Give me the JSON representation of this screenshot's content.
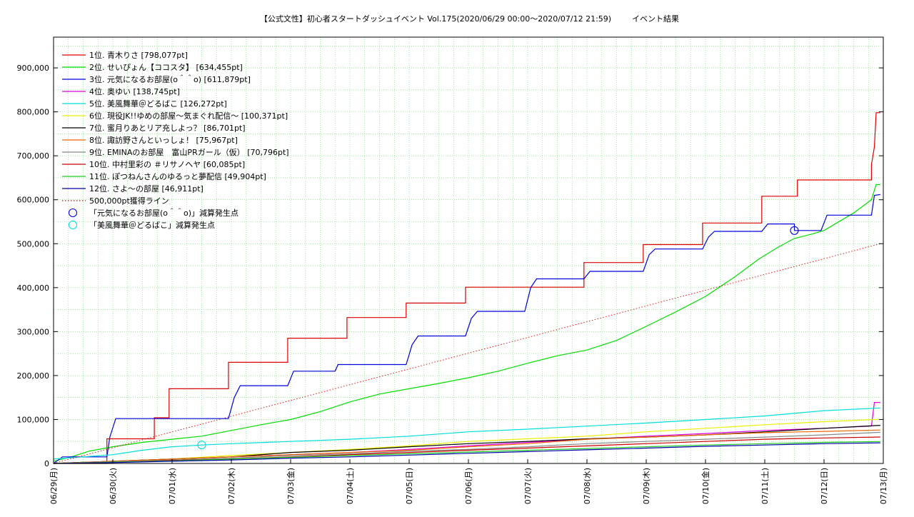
{
  "chart_data": {
    "type": "line",
    "title": "【公式文性】初心者スタートダッシュイベント Vol.175(2020/06/29 00:00〜2020/07/12 21:59)",
    "subtitle": "イベント結果",
    "xlabel": "",
    "ylabel": "",
    "x_ticks": [
      "06/29(月)",
      "06/30(火)",
      "07/01(水)",
      "07/02(木)",
      "07/03(金)",
      "07/04(土)",
      "07/05(日)",
      "07/06(月)",
      "07/07(火)",
      "07/08(水)",
      "07/09(木)",
      "07/10(金)",
      "07/11(土)",
      "07/12(日)",
      "07/13(月)"
    ],
    "y_ticks": [
      "0",
      "100,000",
      "200,000",
      "300,000",
      "400,000",
      "500,000",
      "600,000",
      "700,000",
      "800,000",
      "900,000"
    ],
    "ylim": [
      0,
      970000
    ],
    "xlim": [
      0,
      14
    ],
    "grid": true,
    "legend_position": "top-left",
    "series": [
      {
        "name": "1位. 青木りさ [798,077pt]",
        "color": "#e00000",
        "style": "solid",
        "points": [
          [
            0,
            0
          ],
          [
            0.9,
            0
          ],
          [
            0.9,
            56000
          ],
          [
            1.7,
            56000
          ],
          [
            1.7,
            104000
          ],
          [
            1.95,
            104000
          ],
          [
            1.95,
            170000
          ],
          [
            2.95,
            170000
          ],
          [
            2.95,
            230000
          ],
          [
            3.95,
            230000
          ],
          [
            3.95,
            285000
          ],
          [
            4.95,
            285000
          ],
          [
            4.95,
            332000
          ],
          [
            5.95,
            332000
          ],
          [
            5.95,
            365000
          ],
          [
            6.95,
            365000
          ],
          [
            6.95,
            401000
          ],
          [
            8.95,
            401000
          ],
          [
            8.95,
            457000
          ],
          [
            9.95,
            457000
          ],
          [
            9.95,
            498000
          ],
          [
            10.95,
            498000
          ],
          [
            10.95,
            547000
          ],
          [
            11.95,
            547000
          ],
          [
            11.95,
            608000
          ],
          [
            12.55,
            608000
          ],
          [
            12.55,
            645000
          ],
          [
            13.8,
            645000
          ],
          [
            13.8,
            680000
          ],
          [
            13.85,
            720000
          ],
          [
            13.88,
            798077
          ],
          [
            13.95,
            798077
          ]
        ]
      },
      {
        "name": "2位. せいぴょん【ココスタ】 [634,455pt]",
        "color": "#00dd00",
        "style": "solid",
        "points": [
          [
            0,
            5000
          ],
          [
            0.3,
            15000
          ],
          [
            0.6,
            28000
          ],
          [
            1,
            38000
          ],
          [
            1.5,
            48000
          ],
          [
            2,
            55000
          ],
          [
            2.5,
            62000
          ],
          [
            3,
            75000
          ],
          [
            3.5,
            88000
          ],
          [
            4,
            100000
          ],
          [
            4.5,
            118000
          ],
          [
            5,
            140000
          ],
          [
            5.5,
            158000
          ],
          [
            6,
            170000
          ],
          [
            6.5,
            182000
          ],
          [
            7,
            195000
          ],
          [
            7.5,
            210000
          ],
          [
            8,
            228000
          ],
          [
            8.5,
            245000
          ],
          [
            9,
            258000
          ],
          [
            9.5,
            280000
          ],
          [
            10,
            312000
          ],
          [
            10.5,
            345000
          ],
          [
            11,
            380000
          ],
          [
            11.5,
            425000
          ],
          [
            11.9,
            465000
          ],
          [
            12.2,
            490000
          ],
          [
            12.5,
            512000
          ],
          [
            12.8,
            522000
          ],
          [
            13,
            530000
          ],
          [
            13.5,
            570000
          ],
          [
            13.8,
            600000
          ],
          [
            13.88,
            634455
          ],
          [
            13.95,
            634455
          ]
        ]
      },
      {
        "name": "3位. 元気になるお部屋(o＾＾o) [611,879pt]",
        "color": "#0000dd",
        "style": "solid",
        "points": [
          [
            0,
            0
          ],
          [
            0.15,
            15000
          ],
          [
            0.9,
            15000
          ],
          [
            0.95,
            60000
          ],
          [
            1.05,
            102000
          ],
          [
            2.95,
            102000
          ],
          [
            3.05,
            150000
          ],
          [
            3.15,
            177000
          ],
          [
            3.95,
            177000
          ],
          [
            4.05,
            210000
          ],
          [
            4.75,
            210000
          ],
          [
            4.8,
            225000
          ],
          [
            5.95,
            225000
          ],
          [
            6.05,
            270000
          ],
          [
            6.15,
            290000
          ],
          [
            6.95,
            290000
          ],
          [
            7.05,
            330000
          ],
          [
            7.15,
            346000
          ],
          [
            7.95,
            346000
          ],
          [
            8.05,
            400000
          ],
          [
            8.15,
            420000
          ],
          [
            8.95,
            420000
          ],
          [
            9.05,
            437000
          ],
          [
            9.95,
            437000
          ],
          [
            10.05,
            475000
          ],
          [
            10.15,
            488000
          ],
          [
            10.95,
            488000
          ],
          [
            11.05,
            515000
          ],
          [
            11.15,
            528000
          ],
          [
            11.95,
            528000
          ],
          [
            12.05,
            545000
          ],
          [
            12.5,
            545000
          ],
          [
            12.5,
            530000
          ],
          [
            12.95,
            530000
          ],
          [
            13.05,
            565000
          ],
          [
            13.8,
            565000
          ],
          [
            13.85,
            610000
          ],
          [
            13.95,
            611879
          ]
        ]
      },
      {
        "name": "4位. 奥ゆい [138,745pt]",
        "color": "#dd00dd",
        "style": "solid",
        "points": [
          [
            0,
            0
          ],
          [
            1,
            5000
          ],
          [
            2,
            10000
          ],
          [
            3,
            15000
          ],
          [
            4,
            20000
          ],
          [
            5,
            25000
          ],
          [
            6,
            32000
          ],
          [
            7,
            40000
          ],
          [
            8,
            48000
          ],
          [
            9,
            55000
          ],
          [
            10,
            62000
          ],
          [
            11,
            68000
          ],
          [
            12,
            75000
          ],
          [
            13,
            80000
          ],
          [
            13.8,
            85000
          ],
          [
            13.85,
            138745
          ],
          [
            13.95,
            138745
          ]
        ]
      },
      {
        "name": "5位. 美風舞華＠どるばこ [126,272pt]",
        "color": "#00dddd",
        "style": "solid",
        "points": [
          [
            0,
            10000
          ],
          [
            0.5,
            15000
          ],
          [
            1,
            20000
          ],
          [
            1.5,
            30000
          ],
          [
            2,
            38000
          ],
          [
            2.5,
            42000
          ],
          [
            3,
            45000
          ],
          [
            4,
            50000
          ],
          [
            5,
            55000
          ],
          [
            6,
            62000
          ],
          [
            7,
            72000
          ],
          [
            8,
            78000
          ],
          [
            9,
            85000
          ],
          [
            10,
            92000
          ],
          [
            11,
            100000
          ],
          [
            12,
            108000
          ],
          [
            13,
            120000
          ],
          [
            13.95,
            126272
          ]
        ]
      },
      {
        "name": "6位. 現役JK!!ゆめの部屋〜気まぐれ配信〜 [100,371pt]",
        "color": "#eeee00",
        "style": "solid",
        "points": [
          [
            0,
            0
          ],
          [
            1,
            5000
          ],
          [
            2,
            10000
          ],
          [
            3,
            18000
          ],
          [
            4,
            25000
          ],
          [
            5,
            32000
          ],
          [
            6,
            40000
          ],
          [
            7,
            50000
          ],
          [
            8,
            56000
          ],
          [
            9,
            62000
          ],
          [
            10,
            72000
          ],
          [
            11,
            80000
          ],
          [
            12,
            88000
          ],
          [
            13,
            95000
          ],
          [
            13.95,
            100371
          ]
        ]
      },
      {
        "name": "7位. 蜜月りあとリア充しよっ？ [86,701pt]",
        "color": "#000000",
        "style": "solid",
        "points": [
          [
            0,
            0
          ],
          [
            1,
            5000
          ],
          [
            2,
            10000
          ],
          [
            3,
            15000
          ],
          [
            4,
            25000
          ],
          [
            5,
            30000
          ],
          [
            6,
            38000
          ],
          [
            7,
            45000
          ],
          [
            8,
            50000
          ],
          [
            9,
            56000
          ],
          [
            10,
            60000
          ],
          [
            11,
            65000
          ],
          [
            12,
            72000
          ],
          [
            13,
            80000
          ],
          [
            13.95,
            86701
          ]
        ]
      },
      {
        "name": "8位. 諏訪野さんといっしょ！ [75,967pt]",
        "color": "#ee6600",
        "style": "solid",
        "points": [
          [
            0,
            0
          ],
          [
            1,
            5000
          ],
          [
            2,
            10000
          ],
          [
            3,
            15000
          ],
          [
            4,
            20000
          ],
          [
            5,
            25000
          ],
          [
            6,
            30000
          ],
          [
            7,
            38000
          ],
          [
            8,
            45000
          ],
          [
            9,
            55000
          ],
          [
            10,
            60000
          ],
          [
            11,
            65000
          ],
          [
            12,
            70000
          ],
          [
            13,
            73000
          ],
          [
            13.95,
            75967
          ]
        ]
      },
      {
        "name": "9位. EMINAのお部屋　富山PRガール（仮） [70,796pt]",
        "color": "#888888",
        "style": "solid",
        "points": [
          [
            0,
            0
          ],
          [
            1,
            4000
          ],
          [
            2,
            8000
          ],
          [
            3,
            12000
          ],
          [
            4,
            18000
          ],
          [
            5,
            22000
          ],
          [
            6,
            28000
          ],
          [
            7,
            32000
          ],
          [
            8,
            38000
          ],
          [
            9,
            45000
          ],
          [
            10,
            50000
          ],
          [
            11,
            55000
          ],
          [
            12,
            60000
          ],
          [
            13,
            65000
          ],
          [
            13.95,
            70796
          ]
        ]
      },
      {
        "name": "10位. 中村里彩の ＃リサノヘヤ [60,085pt]",
        "color": "#cc0000",
        "style": "solid",
        "points": [
          [
            0,
            0
          ],
          [
            1,
            3000
          ],
          [
            2,
            7000
          ],
          [
            3,
            10000
          ],
          [
            4,
            15000
          ],
          [
            5,
            20000
          ],
          [
            6,
            25000
          ],
          [
            7,
            30000
          ],
          [
            8,
            35000
          ],
          [
            9,
            40000
          ],
          [
            10,
            45000
          ],
          [
            11,
            50000
          ],
          [
            12,
            55000
          ],
          [
            13,
            58000
          ],
          [
            13.95,
            60085
          ]
        ]
      },
      {
        "name": "11位. ぽつねんさんのゆるっと夢配信 [49,904pt]",
        "color": "#22cc22",
        "style": "solid",
        "points": [
          [
            0,
            0
          ],
          [
            1,
            3000
          ],
          [
            2,
            6000
          ],
          [
            3,
            10000
          ],
          [
            4,
            14000
          ],
          [
            5,
            18000
          ],
          [
            6,
            22000
          ],
          [
            7,
            26000
          ],
          [
            8,
            30000
          ],
          [
            9,
            34000
          ],
          [
            10,
            38000
          ],
          [
            11,
            42000
          ],
          [
            12,
            45000
          ],
          [
            13,
            48000
          ],
          [
            13.95,
            49904
          ]
        ]
      },
      {
        "name": "12位. さよ〜の部屋 [46,911pt]",
        "color": "#0000aa",
        "style": "solid",
        "points": [
          [
            0,
            0
          ],
          [
            1,
            2000
          ],
          [
            2,
            5000
          ],
          [
            3,
            8000
          ],
          [
            4,
            12000
          ],
          [
            5,
            15000
          ],
          [
            6,
            19000
          ],
          [
            7,
            23000
          ],
          [
            8,
            27000
          ],
          [
            9,
            31000
          ],
          [
            10,
            35000
          ],
          [
            11,
            39000
          ],
          [
            12,
            42000
          ],
          [
            13,
            45000
          ],
          [
            13.95,
            46911
          ]
        ]
      },
      {
        "name": "500,000pt獲得ライン",
        "color": "#dd0000",
        "style": "dotted",
        "points": [
          [
            0,
            0
          ],
          [
            13.95,
            500000
          ]
        ]
      }
    ],
    "markers": [
      {
        "name": "「元気になるお部屋(o＾＾o)」減算発生点",
        "color": "#0000dd",
        "x": 12.5,
        "y": 530000
      },
      {
        "name": "「美風舞華＠どるばこ」減算発生点",
        "color": "#00dddd",
        "x": 2.5,
        "y": 42000
      }
    ]
  }
}
